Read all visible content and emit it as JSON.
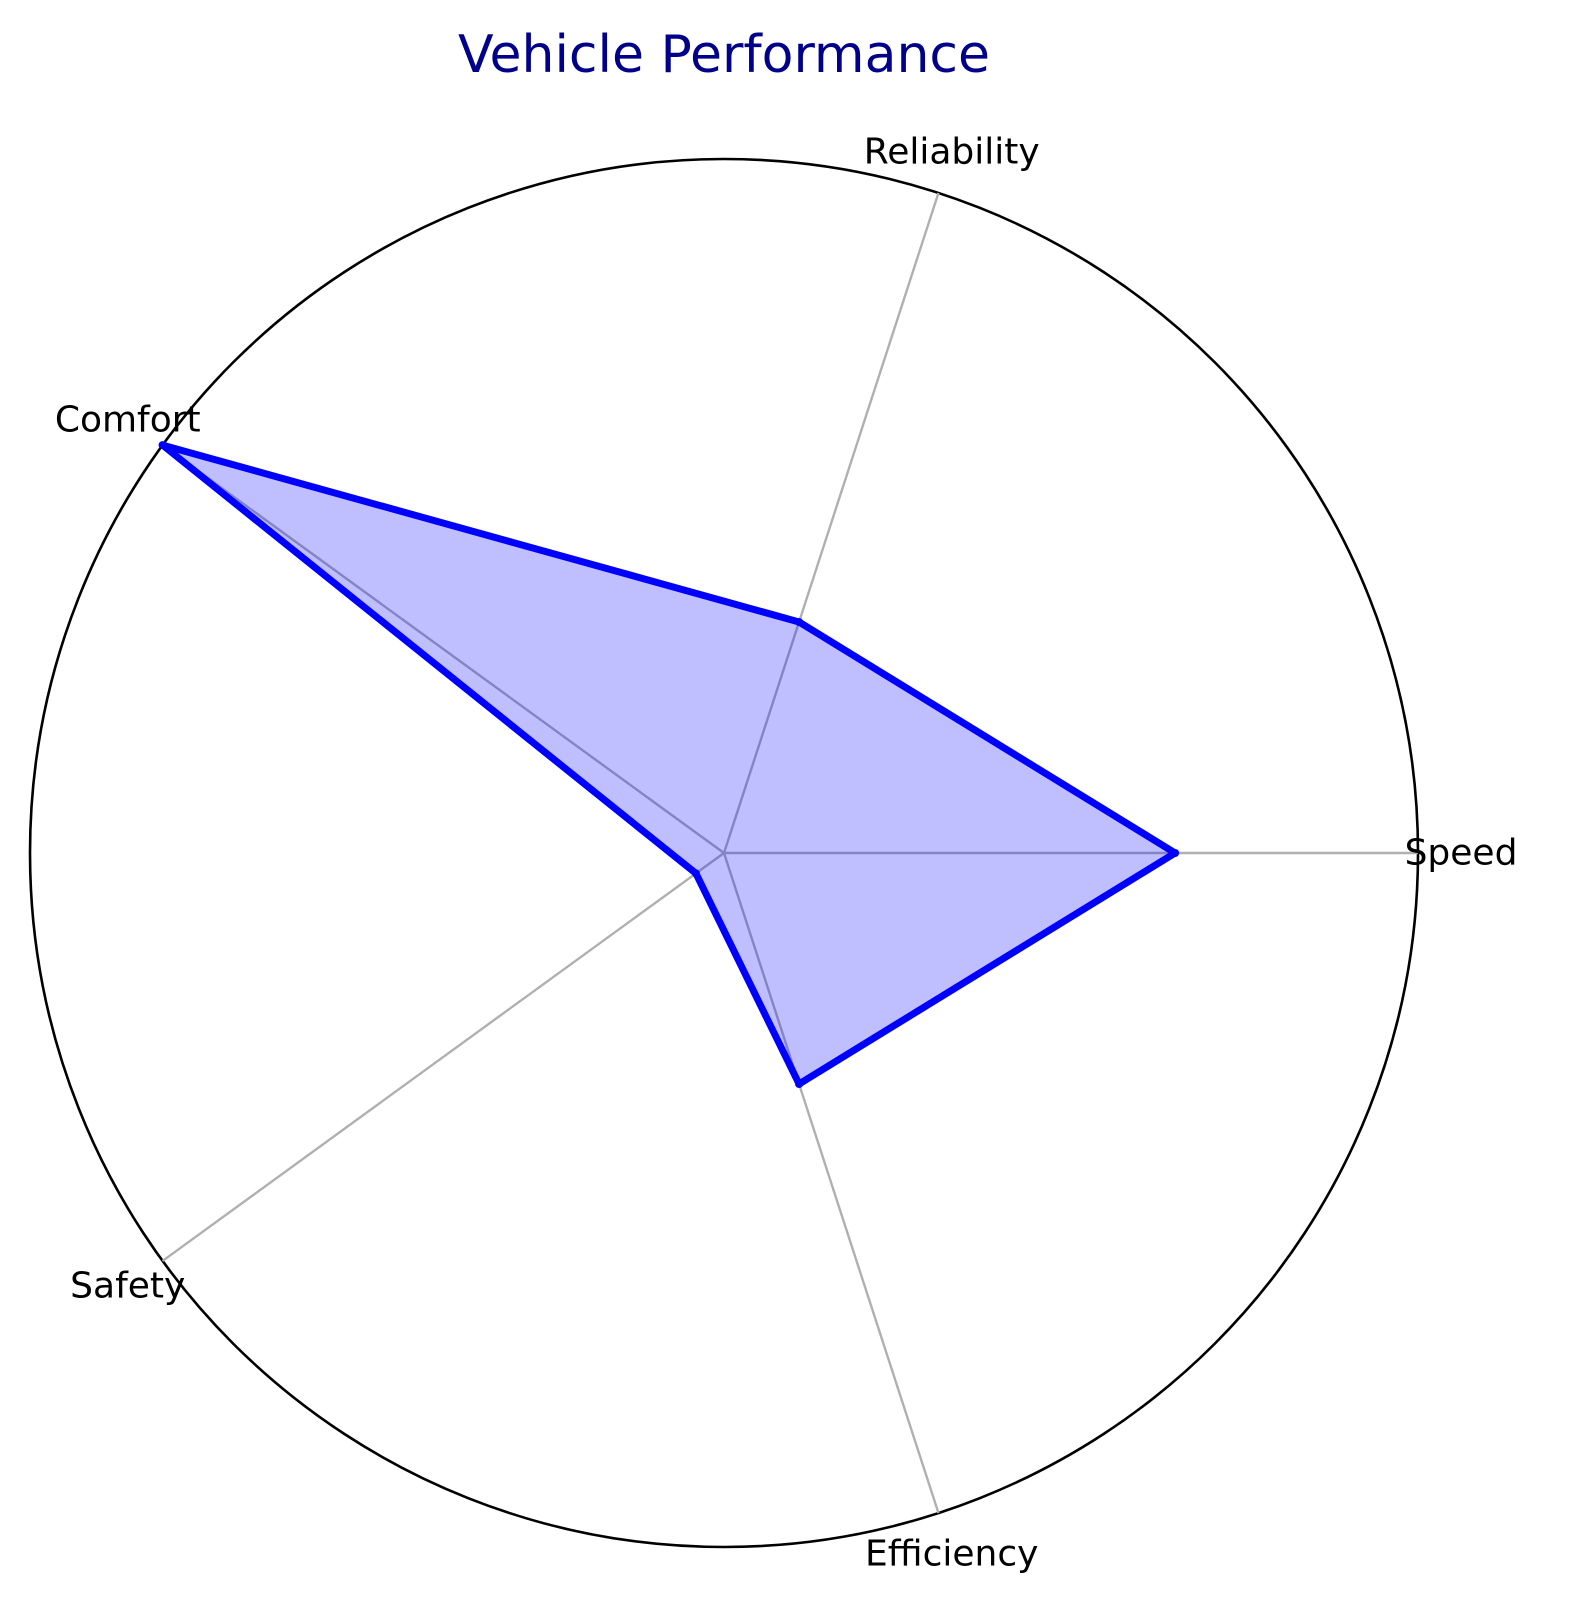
{
  "chart_data": {
    "type": "radar",
    "title": "Vehicle Performance",
    "categories": [
      "Speed",
      "Reliability",
      "Comfort",
      "Safety",
      "Efficiency"
    ],
    "series": [
      {
        "values": [
          0.65,
          0.35,
          1.0,
          0.05,
          0.35
        ]
      }
    ],
    "rlim": [
      0,
      1
    ],
    "radial_tick_labels_shown": false,
    "grid": "spokes only, outer circle",
    "colors": {
      "title": "#00008b",
      "line": "#0000ff",
      "fill": "#0000ff",
      "fill_opacity": 0.25,
      "spokes": "#b0b0b0",
      "outer_circle": "#000000"
    }
  }
}
